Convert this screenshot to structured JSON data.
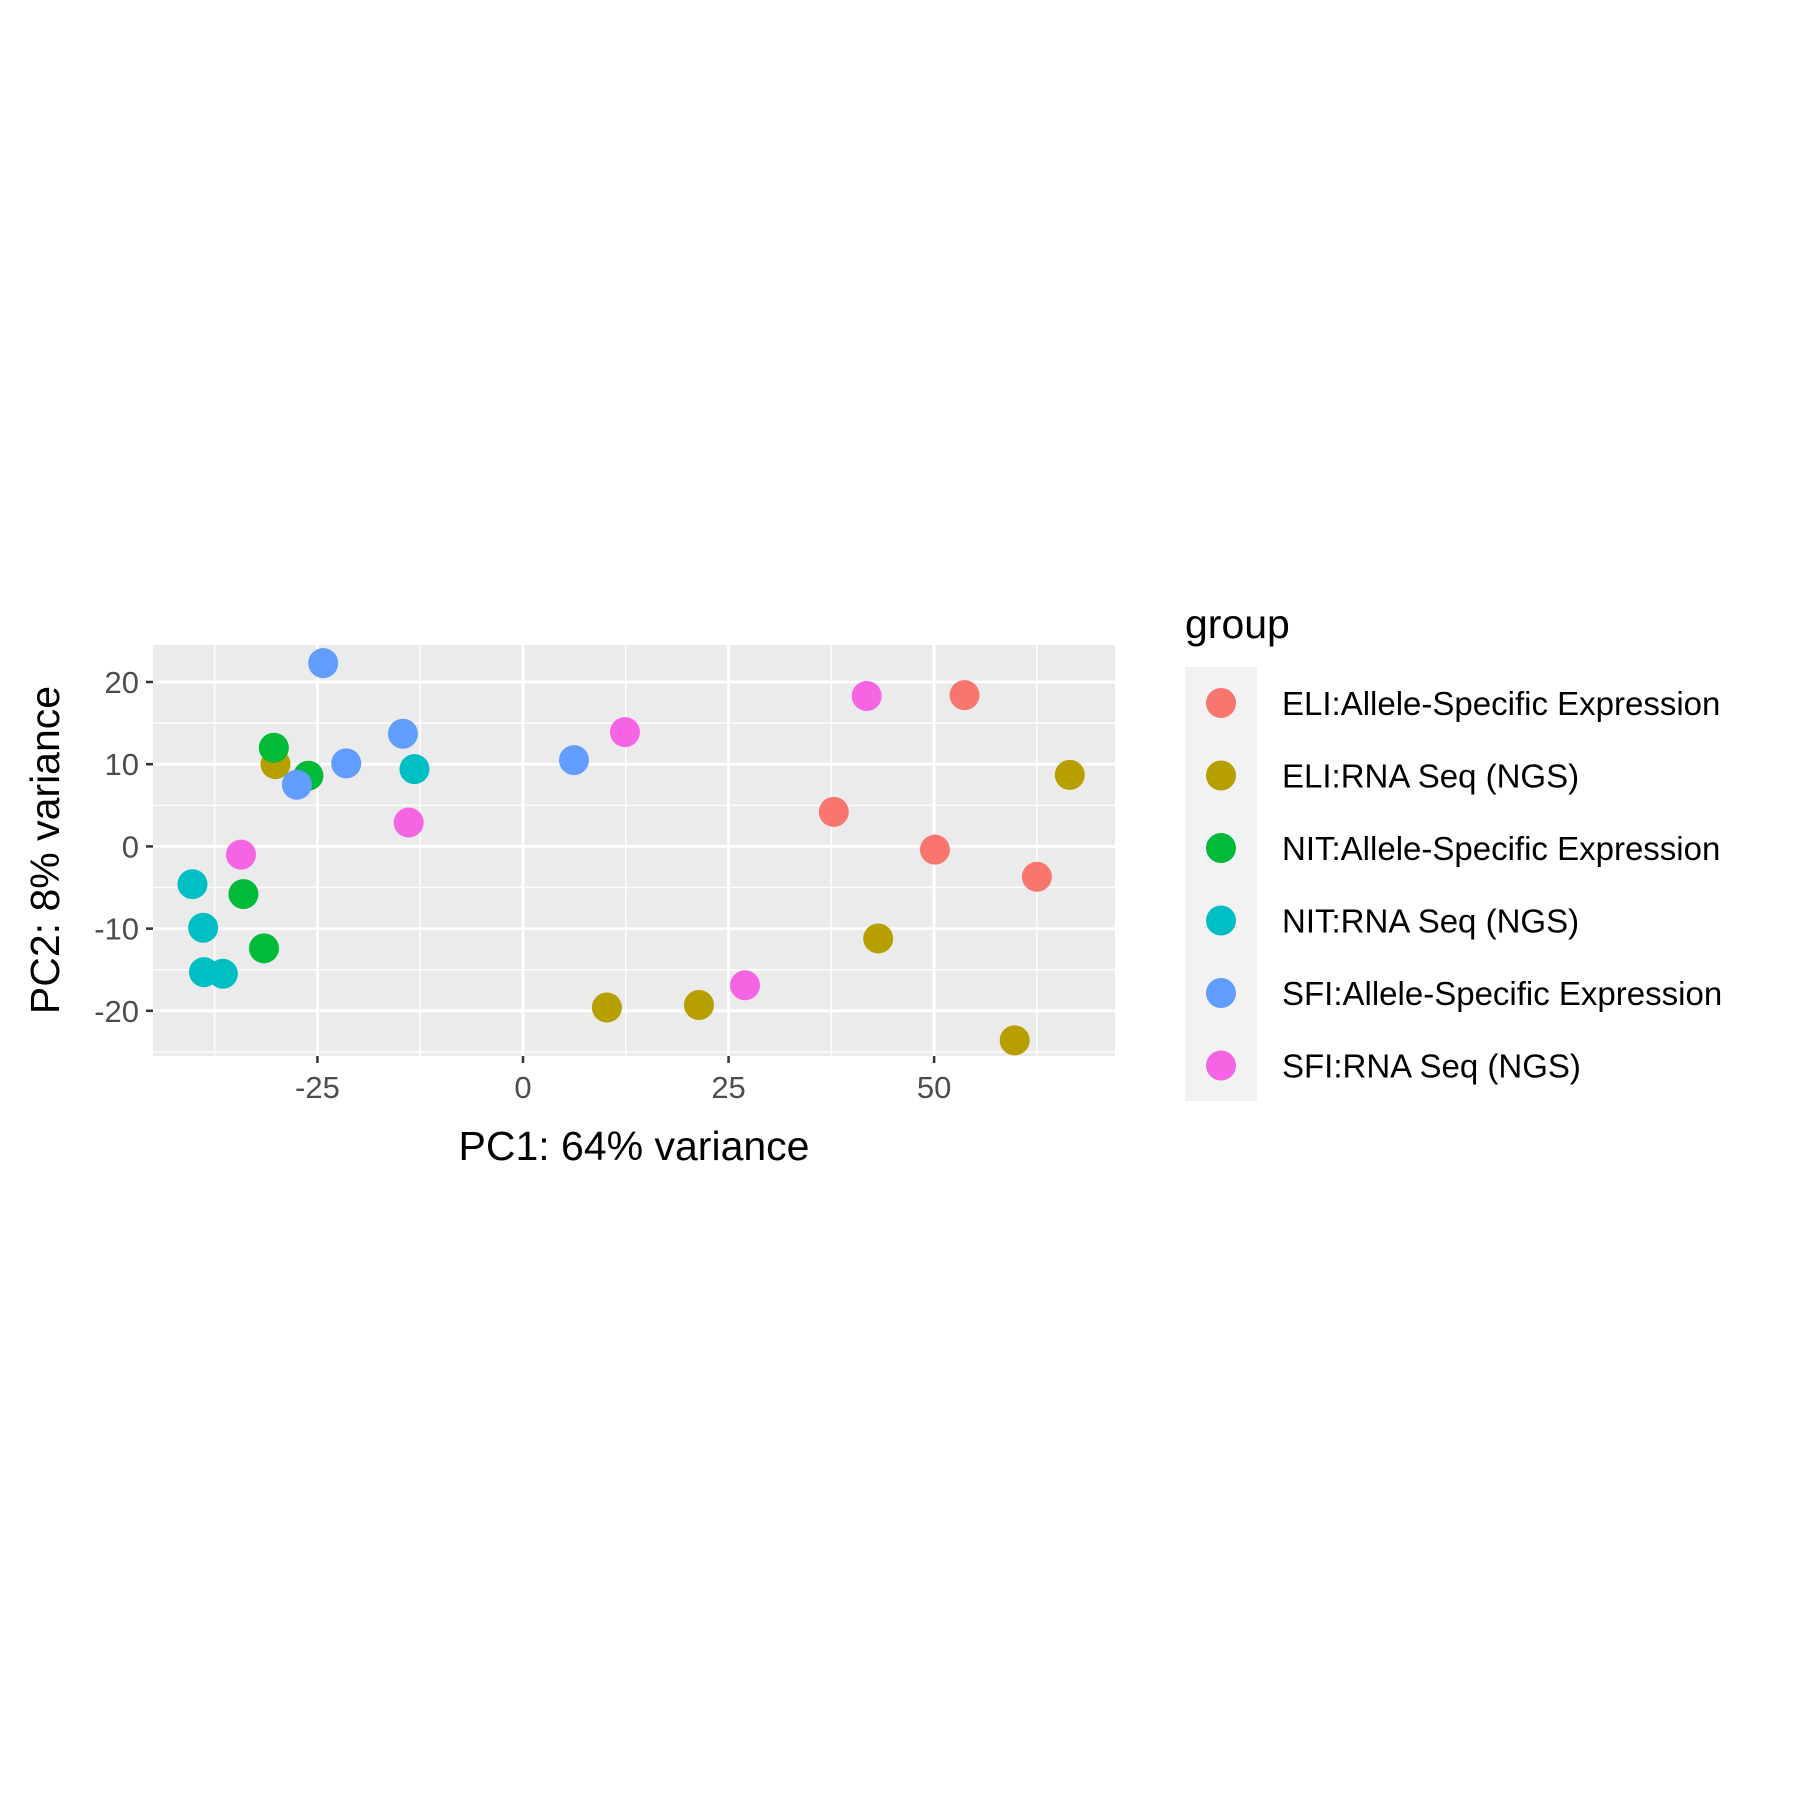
{
  "chart_data": {
    "type": "scatter",
    "xlabel": "PC1: 64% variance",
    "ylabel": "PC2: 8% variance",
    "xlim": [
      -45,
      72
    ],
    "ylim": [
      -25.5,
      24.5
    ],
    "xticks": [
      -25,
      0,
      25,
      50
    ],
    "xtick_labels": [
      "-25",
      "0",
      "25",
      "50"
    ],
    "yticks": [
      -20,
      -10,
      0,
      10,
      20
    ],
    "ytick_labels": [
      "-20",
      "-10",
      "0",
      "10",
      "20"
    ],
    "grid": true,
    "panel_background": "#ebebeb",
    "legend": {
      "title": "group",
      "position": "right"
    },
    "series": [
      {
        "name": "ELI:Allele-Specific Expression",
        "color": "#F8766D",
        "points": [
          [
            53.7,
            18.4
          ],
          [
            37.8,
            4.2
          ],
          [
            50.1,
            -0.4
          ],
          [
            62.5,
            -3.7
          ]
        ]
      },
      {
        "name": "ELI:RNA Seq (NGS)",
        "color": "#B79F00",
        "points": [
          [
            66.5,
            8.7
          ],
          [
            43.2,
            -11.2
          ],
          [
            10.2,
            -19.6
          ],
          [
            21.4,
            -19.3
          ],
          [
            59.8,
            -23.6
          ],
          [
            -30.1,
            10.0
          ]
        ]
      },
      {
        "name": "NIT:Allele-Specific Expression",
        "color": "#00BA38",
        "points": [
          [
            -30.3,
            12.0
          ],
          [
            -26.1,
            8.6
          ],
          [
            -34.0,
            -5.8
          ],
          [
            -31.5,
            -12.4
          ]
        ]
      },
      {
        "name": "NIT:RNA Seq (NGS)",
        "color": "#00BFC4",
        "points": [
          [
            -13.2,
            9.4
          ],
          [
            -40.2,
            -4.6
          ],
          [
            -38.9,
            -9.9
          ],
          [
            -38.8,
            -15.3
          ],
          [
            -36.5,
            -15.5
          ]
        ]
      },
      {
        "name": "SFI:Allele-Specific Expression",
        "color": "#619CFF",
        "points": [
          [
            -24.3,
            22.3
          ],
          [
            -14.6,
            13.7
          ],
          [
            -21.5,
            10.1
          ],
          [
            -27.5,
            7.5
          ],
          [
            6.2,
            10.5
          ]
        ]
      },
      {
        "name": "SFI:RNA Seq (NGS)",
        "color": "#F564E3",
        "points": [
          [
            12.4,
            13.9
          ],
          [
            41.8,
            18.3
          ],
          [
            -13.9,
            2.9
          ],
          [
            -34.3,
            -1.0
          ],
          [
            27.0,
            -16.9
          ]
        ]
      }
    ]
  }
}
